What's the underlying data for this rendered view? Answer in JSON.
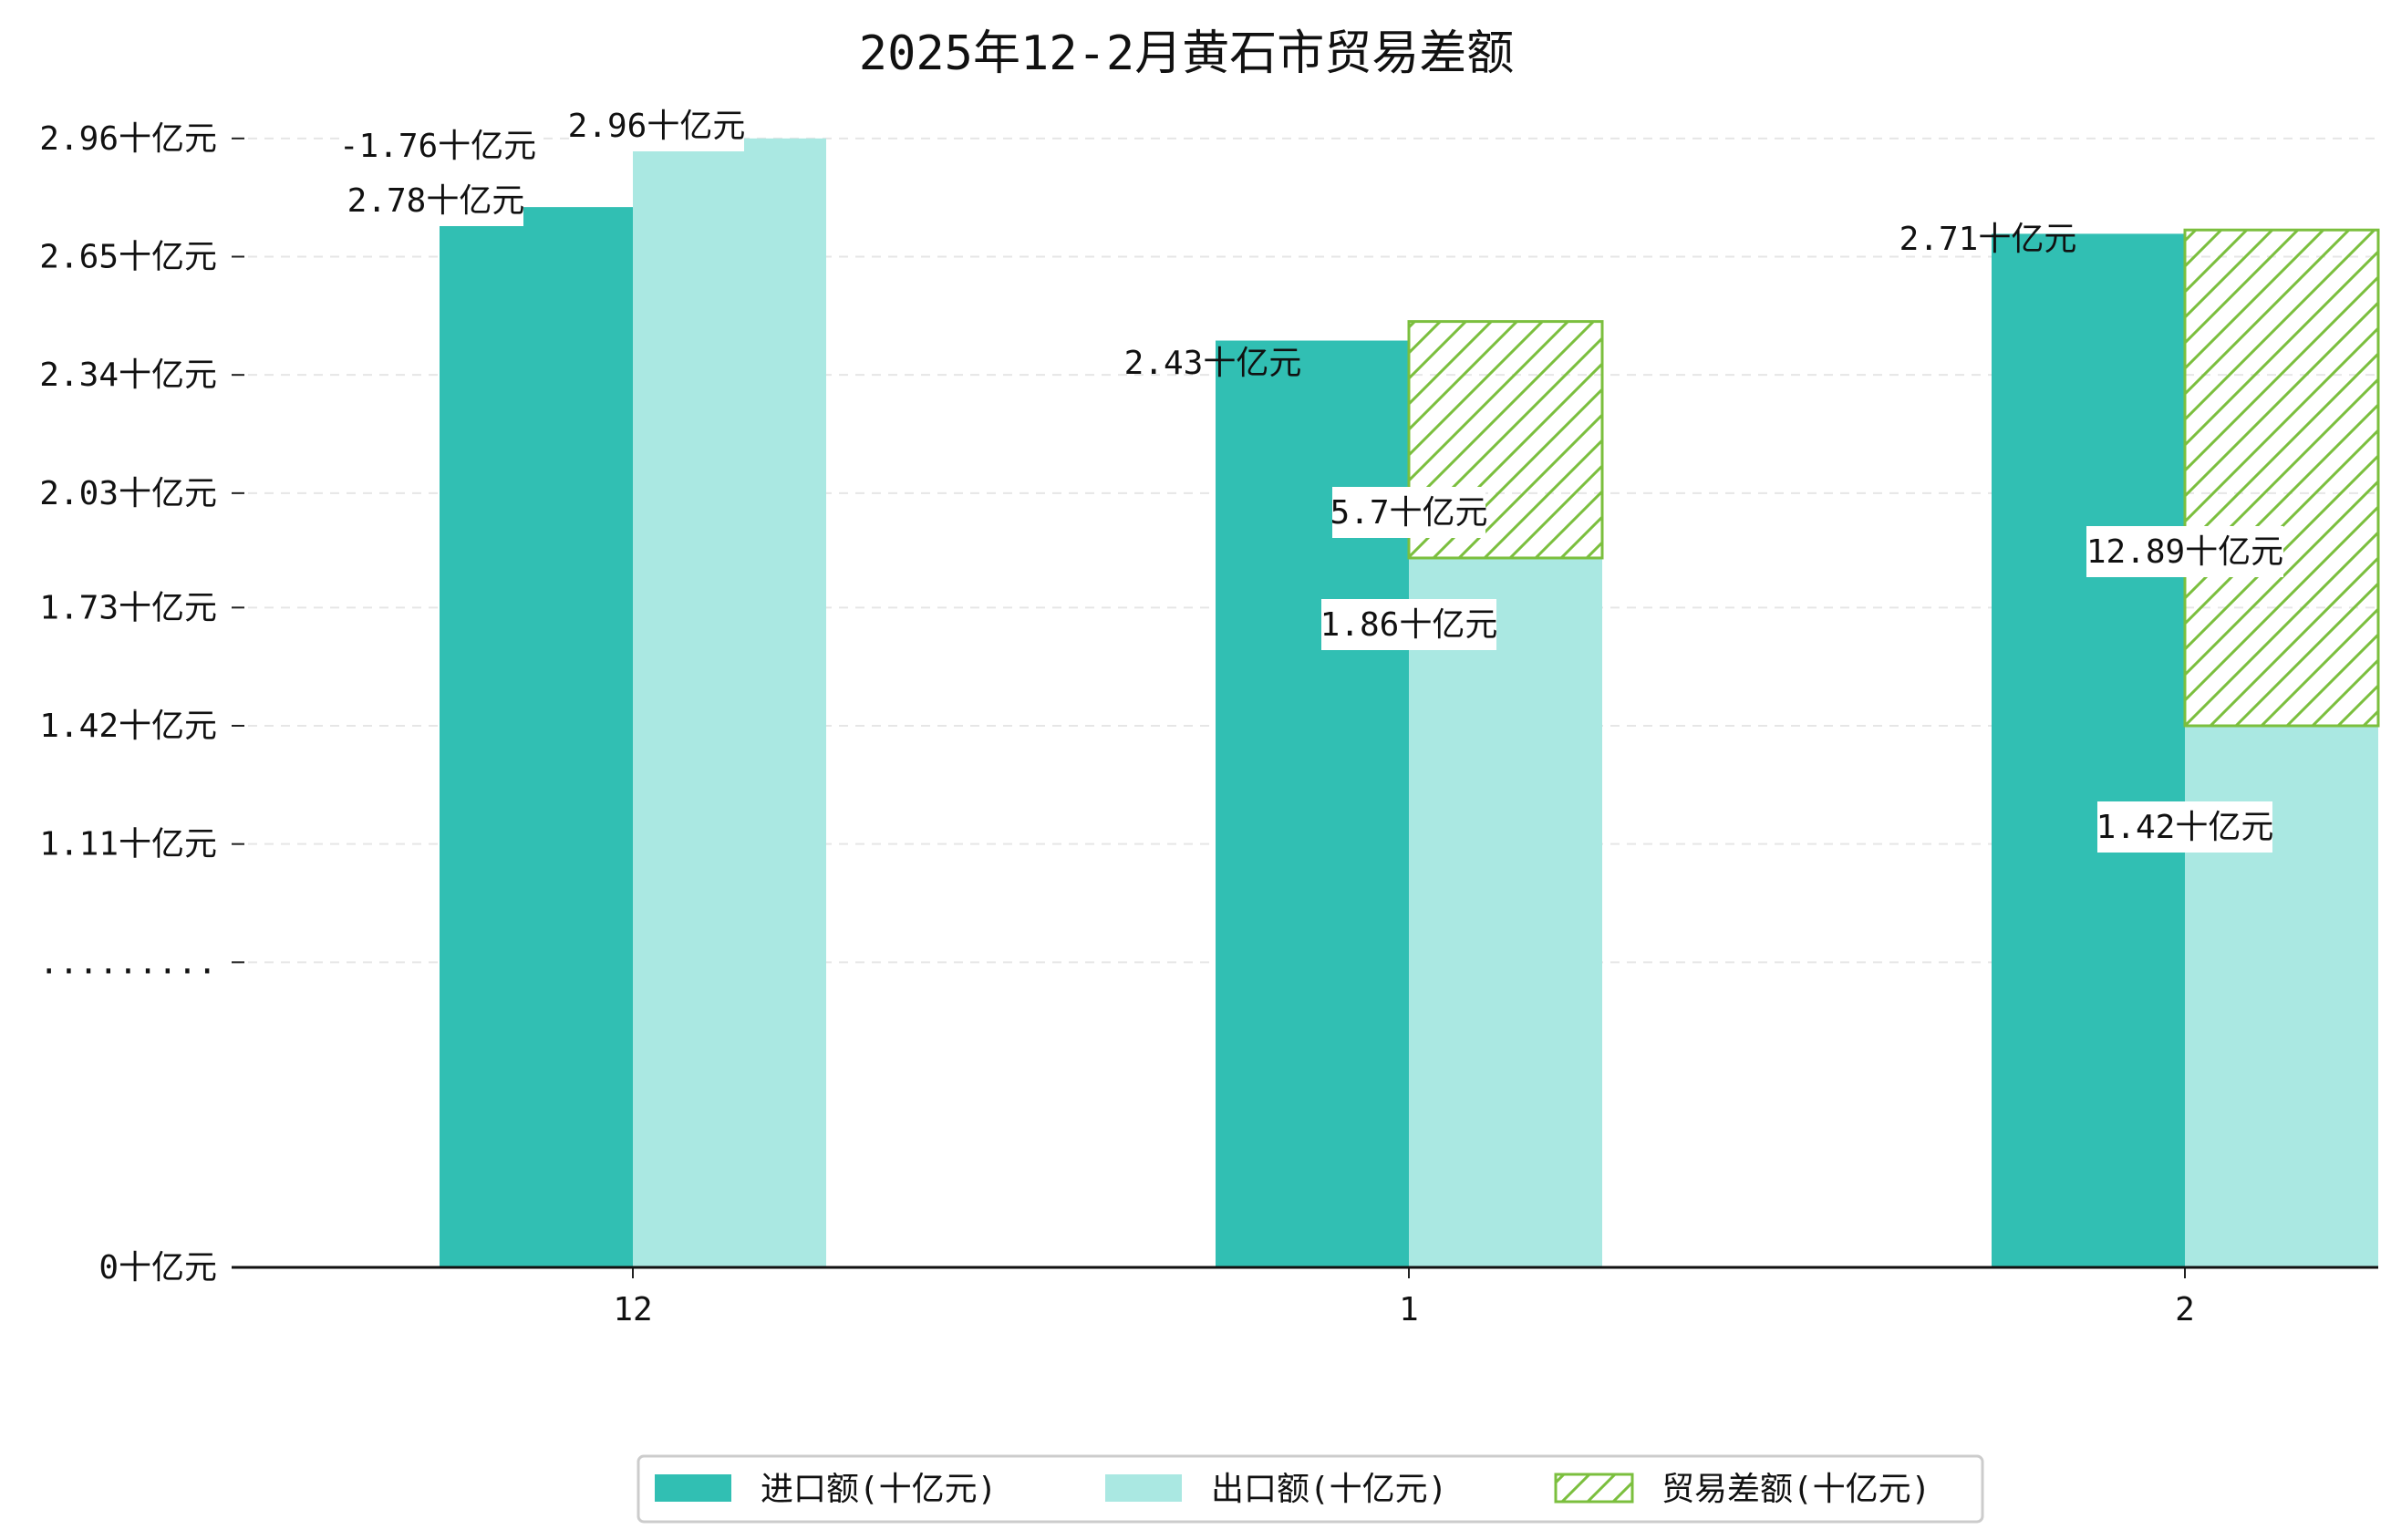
{
  "chart_data": {
    "type": "bar",
    "title": "2025年12-2月黄石市贸易差额",
    "categories": [
      "12",
      "1",
      "2"
    ],
    "y_ticks": [
      {
        "value": 0,
        "label": "0十亿元"
      },
      {
        "value": 0.8,
        "label": "........."
      },
      {
        "value": 1.11,
        "label": "1.11十亿元"
      },
      {
        "value": 1.42,
        "label": "1.42十亿元"
      },
      {
        "value": 1.73,
        "label": "1.73十亿元"
      },
      {
        "value": 2.03,
        "label": "2.03十亿元"
      },
      {
        "value": 2.34,
        "label": "2.34十亿元"
      },
      {
        "value": 2.65,
        "label": "2.65十亿元"
      },
      {
        "value": 2.96,
        "label": "2.96十亿元"
      }
    ],
    "ylim": [
      0,
      3.06
    ],
    "grid": "horizontal-dashed",
    "legend_position": "bottom-center",
    "series": [
      {
        "name": "进口额(十亿元)",
        "color": "#31bfb3",
        "values": [
          2.78,
          2.43,
          2.71
        ],
        "labels": [
          "2.78十亿元",
          "2.43十亿元",
          "2.71十亿元"
        ]
      },
      {
        "name": "出口额(十亿元)",
        "color": "#aae8e2",
        "values": [
          2.96,
          1.86,
          1.42
        ],
        "labels": [
          "2.96十亿元",
          "1.86十亿元",
          "1.42十亿元"
        ]
      },
      {
        "name": "贸易差额(十亿元)",
        "color": "#7bbf3e",
        "values": [
          -1.76,
          5.7,
          12.89
        ],
        "labels": [
          "-1.76十亿元",
          "5.7十亿元",
          "12.89十亿元"
        ],
        "segments": [
          {
            "start": 2.96,
            "end": 2.96
          },
          {
            "start": 1.86,
            "end": 2.48
          },
          {
            "start": 1.42,
            "end": 2.72
          }
        ]
      }
    ]
  }
}
